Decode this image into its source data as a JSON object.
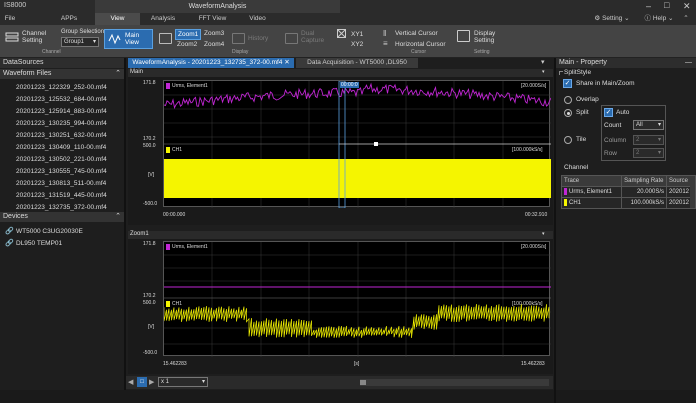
{
  "app": {
    "name": "IS8000",
    "window_title": "WaveformAnalysis"
  },
  "menu": [
    "File",
    "APPs",
    "View",
    "Analysis",
    "FFT View",
    "Video"
  ],
  "menu_right": {
    "setting": "Setting",
    "help": "Help"
  },
  "ribbon": {
    "channel_setting": "Channel\nSetting",
    "group_selection_label": "Group Selection",
    "group_selection_value": "Group1",
    "main_view": "Main\nView",
    "zoom1": "Zoom1",
    "zoom2": "Zoom2",
    "zoom3": "Zoom3",
    "zoom4": "Zoom4",
    "history": "History",
    "dual_capture": "Dual\nCapture",
    "xy1": "XY1",
    "xy2": "XY2",
    "vertical_cursor": "Vertical Cursor",
    "horizontal_cursor": "Horizontal Cursor",
    "display_setting": "Display\nSetting",
    "group_channel": "Channel",
    "group_display": "Display",
    "group_cursor": "Cursor",
    "group_setting": "Setting"
  },
  "left": {
    "header": "DataSources",
    "files_header": "Waveform Files",
    "files": [
      "20201223_122329_252-00.mf4",
      "20201223_125532_684-00.mf4",
      "20201223_125914_883-00.mf4",
      "20201223_130235_994-00.mf4",
      "20201223_130251_632-00.mf4",
      "20201223_130409_110-00.mf4",
      "20201223_130502_221-00.mf4",
      "20201223_130555_745-00.mf4",
      "20201223_130813_511-00.mf4",
      "20201223_131519_445-00.mf4",
      "20201223_132735_372-00.mf4"
    ],
    "devices_header": "Devices",
    "devices": [
      "WT5000 C3UG20030E",
      "DL950 TEMP01"
    ]
  },
  "tabs": [
    {
      "label": "WaveformAnalysis - 20201223_132735_372-00.mf4",
      "active": true
    },
    {
      "label": "Data Acquisition - WT5000 ,DL950",
      "active": false
    }
  ],
  "main_view": {
    "label": "Main",
    "ch1_top": {
      "name": "Urms, Element1",
      "ymax": "171.8",
      "ymin": "170.2",
      "rate": "[20.000S/s]",
      "cursor_tag": "00:00:0"
    },
    "ch2_top": {
      "name": "CH1",
      "ymax": "500.0",
      "ymid": "[V]",
      "ymin": "-500.0",
      "rate": "[100.000kS/s]"
    },
    "x_start": "00:00.000",
    "x_end": "00:32.910"
  },
  "zoom_view": {
    "label": "Zoom1",
    "ch1": {
      "name": "Urms, Element1",
      "ymax": "171.8",
      "ymin": "170.2",
      "rate": "[20.000S/s]"
    },
    "ch2": {
      "name": "CH1",
      "ymax": "500.0",
      "ymid": "[V]",
      "ymin": "-500.0",
      "rate": "[100.000kS/s]"
    },
    "x_start": "15.462283",
    "x_mid": "[s]",
    "x_end": "15.462283"
  },
  "bottom_bar": {
    "zoom": "x 1"
  },
  "right": {
    "header": "Main - Property",
    "split_style": "SplitStyle",
    "share": "Share in Main/Zoom",
    "overlap": "Overlap",
    "split": "Split",
    "auto": "Auto",
    "count_label": "Count",
    "count_value": "All",
    "tile": "Tile",
    "column_label": "Column",
    "column_value": "2",
    "row_label": "Row",
    "row_value": "2",
    "channel_header": "Channel",
    "table_headers": [
      "Trace",
      "Sampling Rate",
      "Source"
    ],
    "rows": [
      {
        "trace": "Urms, Element1",
        "rate": "20.000S/s",
        "source": "202012",
        "color": "#c026d3"
      },
      {
        "trace": "CH1",
        "rate": "100.000kS/s",
        "source": "202012",
        "color": "#f5f500"
      }
    ]
  },
  "colors": {
    "accent": "#2b6cb0",
    "trace_urms": "#c026d3",
    "trace_ch1": "#f5f500"
  }
}
